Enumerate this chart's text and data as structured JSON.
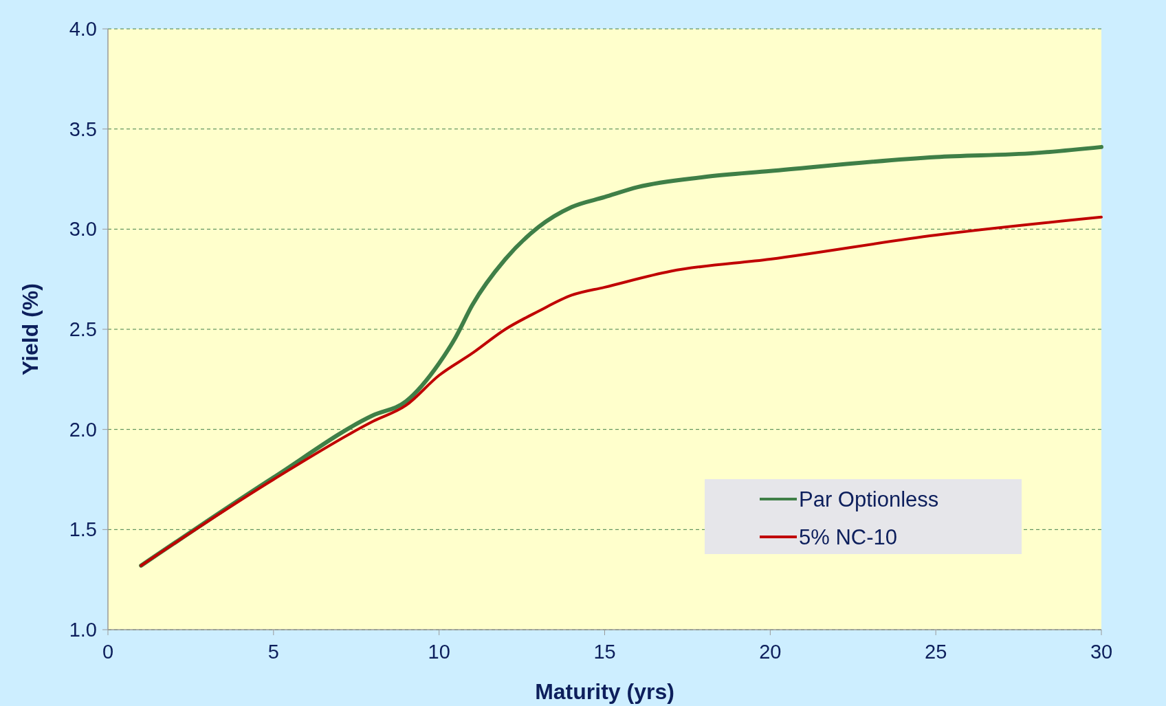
{
  "chart_data": {
    "type": "line",
    "xlabel": "Maturity (yrs)",
    "ylabel": "Yield (%)",
    "xlim": [
      0,
      30
    ],
    "xticks": [
      0,
      5,
      10,
      15,
      20,
      25,
      30
    ],
    "ylim": [
      1.0,
      4.0
    ],
    "yticks": [
      {
        "value": 1.0,
        "label": "1.0"
      },
      {
        "value": 1.5,
        "label": "1.5"
      },
      {
        "value": 2.0,
        "label": "2.0"
      },
      {
        "value": 2.5,
        "label": "2.5"
      },
      {
        "value": 3.0,
        "label": "3.0"
      },
      {
        "value": 3.5,
        "label": "3.5"
      },
      {
        "value": 4.0,
        "label": "4.0"
      }
    ],
    "grid": "y",
    "legend": "bottom right",
    "marker": "none",
    "line_style": "solid",
    "series": [
      {
        "name": "Par Optionless",
        "color": "#3f7f47",
        "x": [
          1,
          5,
          8,
          9,
          10,
          10.5,
          11,
          12,
          13,
          14,
          15,
          16,
          18,
          20,
          25,
          28,
          30
        ],
        "values": [
          1.32,
          1.76,
          2.07,
          2.14,
          2.33,
          2.46,
          2.62,
          2.85,
          3.01,
          3.11,
          3.16,
          3.21,
          3.26,
          3.29,
          3.36,
          3.38,
          3.41
        ]
      },
      {
        "name": "5% NC-10",
        "color": "#c00000",
        "x": [
          1,
          5,
          8,
          9,
          10,
          11,
          12,
          13,
          14,
          15,
          17,
          20,
          25,
          30
        ],
        "values": [
          1.32,
          1.75,
          2.04,
          2.12,
          2.27,
          2.38,
          2.5,
          2.59,
          2.67,
          2.71,
          2.79,
          2.85,
          2.97,
          3.06
        ]
      }
    ]
  }
}
